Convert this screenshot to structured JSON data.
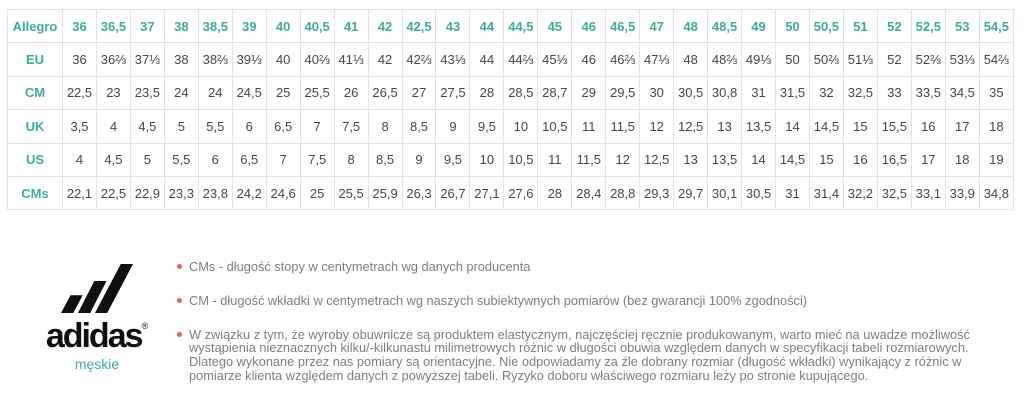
{
  "colors": {
    "accent_teal": "#3BAD9A",
    "bullet_orange": "#D96A4F",
    "table_text": "#474747",
    "note_text": "#7E7E7E",
    "table_border": "#E3E3E3",
    "logo_black": "#101010"
  },
  "table": {
    "rows": [
      {
        "label": "Allegro",
        "values": [
          "36",
          "36,5",
          "37",
          "38",
          "38,5",
          "39",
          "40",
          "40,5",
          "41",
          "42",
          "42,5",
          "43",
          "44",
          "44,5",
          "45",
          "46",
          "46,5",
          "47",
          "48",
          "48,5",
          "49",
          "50",
          "50,5",
          "51",
          "52",
          "52,5",
          "53",
          "54,5"
        ]
      },
      {
        "label": "EU",
        "values": [
          "36",
          "36⅔",
          "37⅓",
          "38",
          "38⅔",
          "39⅓",
          "40",
          "40⅔",
          "41⅓",
          "42",
          "42⅔",
          "43⅓",
          "44",
          "44⅔",
          "45⅓",
          "46",
          "46⅔",
          "47⅓",
          "48",
          "48⅔",
          "49⅓",
          "50",
          "50⅔",
          "51⅓",
          "52",
          "52⅔",
          "53⅓",
          "54⅔"
        ]
      },
      {
        "label": "CM",
        "values": [
          "22,5",
          "23",
          "23,5",
          "24",
          "24",
          "24,5",
          "25",
          "25,5",
          "26",
          "26,5",
          "27",
          "27,5",
          "28",
          "28,5",
          "28,7",
          "29",
          "29,5",
          "30",
          "30,5",
          "30,8",
          "31",
          "31,5",
          "32",
          "32,5",
          "33",
          "33,5",
          "34,5",
          "35"
        ]
      },
      {
        "label": "UK",
        "values": [
          "3,5",
          "4",
          "4,5",
          "5",
          "5,5",
          "6",
          "6,5",
          "7",
          "7,5",
          "8",
          "8,5",
          "9",
          "9,5",
          "10",
          "10,5",
          "11",
          "11,5",
          "12",
          "12,5",
          "13",
          "13,5",
          "14",
          "14,5",
          "15",
          "15,5",
          "16",
          "17",
          "18"
        ]
      },
      {
        "label": "US",
        "values": [
          "4",
          "4,5",
          "5",
          "5,5",
          "6",
          "6,5",
          "7",
          "7,5",
          "8",
          "8,5",
          "9",
          "9,5",
          "10",
          "10,5",
          "11",
          "11,5",
          "12",
          "12,5",
          "13",
          "13,5",
          "14",
          "14,5",
          "15",
          "16",
          "16,5",
          "17",
          "18",
          "19"
        ]
      },
      {
        "label": "CMs",
        "values": [
          "22,1",
          "22,5",
          "22,9",
          "23,3",
          "23,8",
          "24,2",
          "24,6",
          "25",
          "25,5",
          "25,9",
          "26,3",
          "26,7",
          "27,1",
          "27,6",
          "28",
          "28,4",
          "28,8",
          "29,3",
          "29,7",
          "30,1",
          "30,5",
          "31",
          "31,4",
          "32,2",
          "32,5",
          "33,1",
          "33,9",
          "34,8"
        ]
      }
    ]
  },
  "brand": {
    "logo_text": "adidas",
    "registered_mark": "®",
    "category_label": "męskie"
  },
  "notes": [
    "CMs - długość stopy w centymetrach wg danych producenta",
    "CM - długość wkładki w centymetrach wg naszych subiektywnych pomiarów (bez gwarancji 100% zgodności)",
    "W związku z tym, że wyroby obuwnicze są produktem elastycznym, najczęściej ręcznie produkowanym, warto mieć na uwadze możliwość wystąpienia nieznacznych kilku/-kilkunastu milimetrowych różnic w długości obuwia względem danych w specyfikacji tabeli rozmiarowych. Dlatego wykonane przez nas pomiary są orientacyjne. Nie odpowiadamy za źle dobrany rozmiar (długość wkładki) wynikający z różnic w pomiarze klienta względem danych z powyższej tabeli. Ryzyko doboru właściwego rozmiaru leży po stronie kupującego."
  ]
}
